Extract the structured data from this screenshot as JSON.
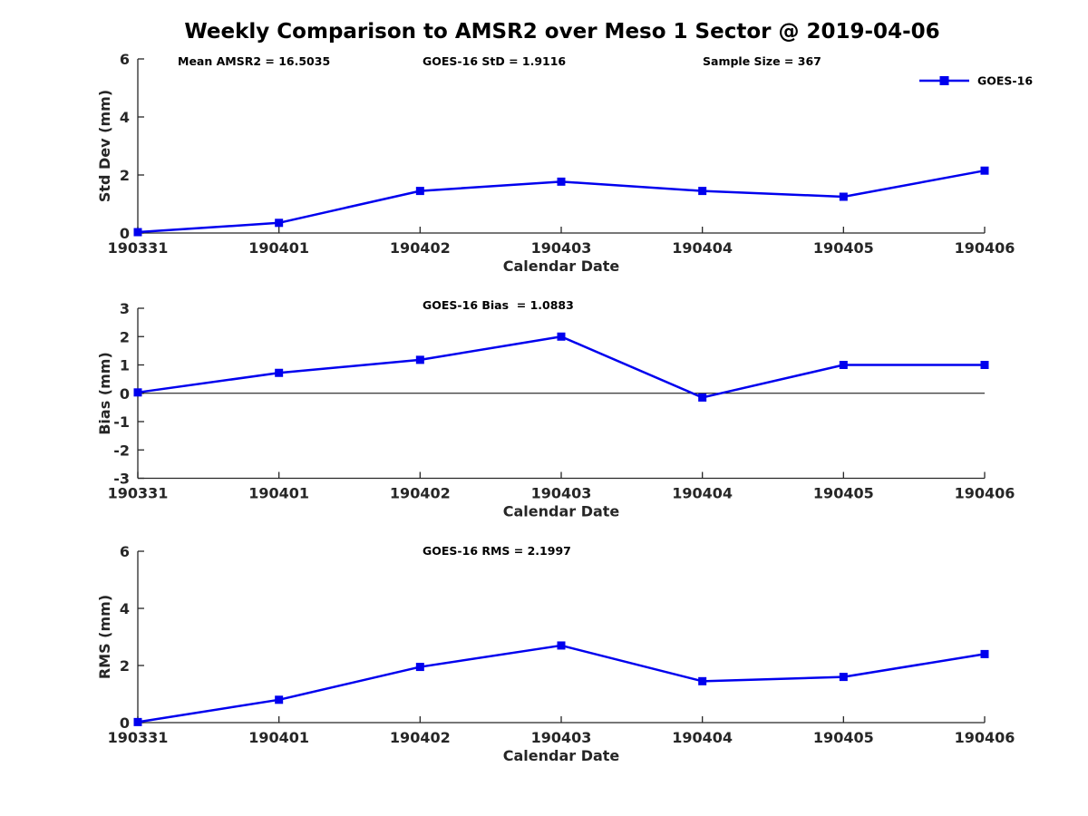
{
  "title": "Weekly Comparison to AMSR2 over Meso 1 Sector @ 2019-04-06",
  "accent_color": "#0000EE",
  "chart_data": [
    {
      "type": "line",
      "x": [
        "190331",
        "190401",
        "190402",
        "190403",
        "190404",
        "190405",
        "190406"
      ],
      "series": [
        {
          "name": "GOES-16",
          "color": "#0000EE",
          "marker": "square",
          "values": [
            0.03,
            0.35,
            1.45,
            1.77,
            1.45,
            1.25,
            2.15
          ]
        }
      ],
      "xlabel": "Calendar Date",
      "ylabel": "Std Dev (mm)",
      "ylim": [
        0,
        6
      ],
      "yticks": [
        0,
        2,
        4,
        6
      ],
      "annotations": [
        "Mean AMSR2 = 16.5035",
        "GOES-16 StD = 1.9116",
        "Sample Size = 367"
      ],
      "legend": {
        "label": "GOES-16",
        "position": "top-right"
      },
      "grid": false,
      "zero_line": false
    },
    {
      "type": "line",
      "x": [
        "190331",
        "190401",
        "190402",
        "190403",
        "190404",
        "190405",
        "190406"
      ],
      "series": [
        {
          "name": "GOES-16",
          "color": "#0000EE",
          "marker": "square",
          "values": [
            0.03,
            0.72,
            1.18,
            2.0,
            -0.15,
            1.0,
            1.0
          ]
        }
      ],
      "xlabel": "Calendar Date",
      "ylabel": "Bias (mm)",
      "ylim": [
        -3,
        3
      ],
      "yticks": [
        -3,
        -2,
        -1,
        0,
        1,
        2,
        3
      ],
      "annotations": [
        "GOES-16 Bias  = 1.0883"
      ],
      "grid": false,
      "zero_line": true
    },
    {
      "type": "line",
      "x": [
        "190331",
        "190401",
        "190402",
        "190403",
        "190404",
        "190405",
        "190406"
      ],
      "series": [
        {
          "name": "GOES-16",
          "color": "#0000EE",
          "marker": "square",
          "values": [
            0.02,
            0.8,
            1.95,
            2.7,
            1.45,
            1.6,
            2.4
          ]
        }
      ],
      "xlabel": "Calendar Date",
      "ylabel": "RMS (mm)",
      "ylim": [
        0,
        6
      ],
      "yticks": [
        0,
        2,
        4,
        6
      ],
      "annotations": [
        "GOES-16 RMS = 2.1997"
      ],
      "grid": false,
      "zero_line": false
    }
  ]
}
